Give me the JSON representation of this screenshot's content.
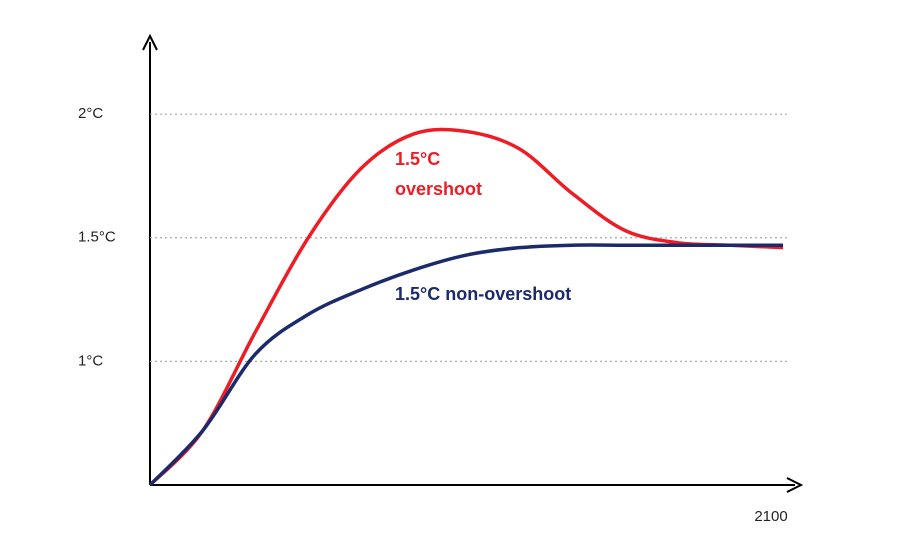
{
  "chart_data": {
    "type": "line",
    "categories": [
      null,
      null,
      null,
      null,
      null,
      null,
      null,
      null,
      null,
      null,
      null,
      null,
      "2100"
    ],
    "series": [
      {
        "color": "#ee1c25",
        "values": [
          0.5,
          0.72,
          1.12,
          1.5,
          1.78,
          1.92,
          1.93,
          1.86,
          1.68,
          1.53,
          1.48,
          1.47,
          1.46
        ]
      },
      {
        "color": "#1b2a6b",
        "values": [
          0.5,
          0.72,
          1.03,
          1.19,
          1.29,
          1.37,
          1.43,
          1.46,
          1.47,
          1.47,
          1.47,
          1.47,
          1.47
        ]
      }
    ],
    "ylim": [
      0.5,
      2.3
    ],
    "yticks": [
      {
        "value": 1,
        "label": "1°C"
      },
      {
        "value": 1.5,
        "label": "1.5°C"
      },
      {
        "value": 2,
        "label": "2°C"
      }
    ],
    "grid": true,
    "annotations": [
      {
        "text": "1.5°C",
        "color": "#ee1c25"
      },
      {
        "text": "overshoot",
        "color": "#ee1c25"
      },
      {
        "text": "1.5°C non-overshoot",
        "color": "#1b2a6b"
      }
    ]
  }
}
